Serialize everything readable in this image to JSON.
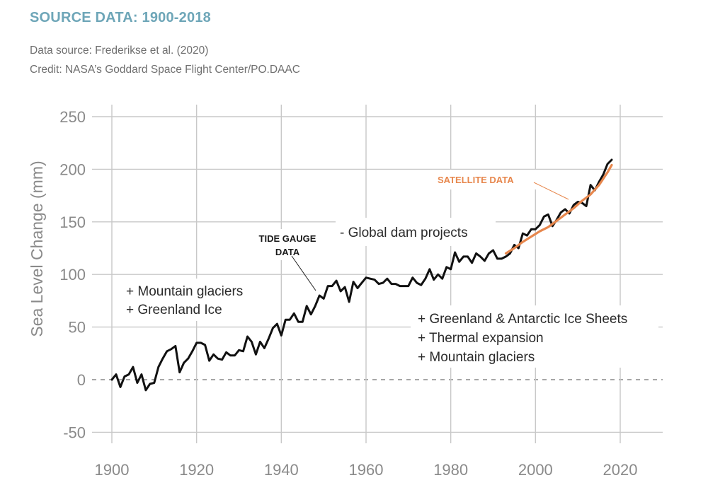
{
  "header": {
    "title": "SOURCE DATA: 1900-2018",
    "source_line": "Data source: Frederikse et al. (2020)",
    "credit_line": "Credit: NASA’s Goddard Space Flight Center/PO.DAAC"
  },
  "chart_data": {
    "type": "line",
    "title": "",
    "xlabel": "",
    "ylabel": "Sea Level Change (mm)",
    "xlim": [
      1900,
      2030
    ],
    "ylim": [
      -60,
      255
    ],
    "x_ticks": [
      1900,
      1920,
      1940,
      1960,
      1980,
      2000,
      2020
    ],
    "y_ticks": [
      250,
      200,
      150,
      100,
      50,
      0,
      -50
    ],
    "grid": true,
    "zero_line": "dashed",
    "series": [
      {
        "name": "TIDE GAUGE DATA",
        "color": "#111111",
        "x": [
          1900,
          1901,
          1902,
          1903,
          1904,
          1905,
          1906,
          1907,
          1908,
          1909,
          1910,
          1911,
          1912,
          1913,
          1914,
          1915,
          1916,
          1917,
          1918,
          1919,
          1920,
          1921,
          1922,
          1923,
          1924,
          1925,
          1926,
          1927,
          1928,
          1929,
          1930,
          1931,
          1932,
          1933,
          1934,
          1935,
          1936,
          1937,
          1938,
          1939,
          1940,
          1941,
          1942,
          1943,
          1944,
          1945,
          1946,
          1947,
          1948,
          1949,
          1950,
          1951,
          1952,
          1953,
          1954,
          1955,
          1956,
          1957,
          1958,
          1959,
          1960,
          1961,
          1962,
          1963,
          1964,
          1965,
          1966,
          1967,
          1968,
          1969,
          1970,
          1971,
          1972,
          1973,
          1974,
          1975,
          1976,
          1977,
          1978,
          1979,
          1980,
          1981,
          1982,
          1983,
          1984,
          1985,
          1986,
          1987,
          1988,
          1989,
          1990,
          1991,
          1992,
          1993,
          1994,
          1995,
          1996,
          1997,
          1998,
          1999,
          2000,
          2001,
          2002,
          2003,
          2004,
          2005,
          2006,
          2007,
          2008,
          2009,
          2010,
          2011,
          2012,
          2013,
          2014,
          2015,
          2016,
          2017,
          2018
        ],
        "values": [
          0,
          5,
          -7,
          3,
          5,
          12,
          -3,
          5,
          -10,
          -4,
          -3,
          12,
          20,
          27,
          29,
          32,
          7,
          16,
          20,
          27,
          35,
          35,
          33,
          18,
          24,
          20,
          19,
          26,
          23,
          23,
          28,
          27,
          41,
          36,
          24,
          36,
          30,
          39,
          49,
          53,
          42,
          57,
          57,
          63,
          55,
          55,
          70,
          62,
          70,
          80,
          77,
          89,
          89,
          94,
          84,
          88,
          74,
          93,
          87,
          92,
          97,
          96,
          95,
          91,
          92,
          96,
          91,
          91,
          89,
          89,
          89,
          97,
          92,
          90,
          96,
          105,
          95,
          100,
          96,
          107,
          105,
          121,
          112,
          117,
          117,
          111,
          120,
          117,
          113,
          120,
          123,
          115,
          115,
          117,
          120,
          128,
          125,
          139,
          137,
          143,
          143,
          147,
          155,
          157,
          146,
          152,
          159,
          162,
          158,
          166,
          169,
          168,
          165,
          185,
          180,
          188,
          195,
          205,
          209
        ]
      },
      {
        "name": "SATELLITE DATA",
        "color": "#e7874d",
        "x": [
          1993,
          1995,
          1997,
          1999,
          2001,
          2003,
          2005,
          2007,
          2009,
          2011,
          2013,
          2015,
          2017,
          2018
        ],
        "values": [
          120,
          125,
          131,
          136,
          141,
          145,
          151,
          157,
          163,
          170,
          176,
          185,
          197,
          204
        ]
      }
    ],
    "annotations": {
      "tide_gauge_line1": "TIDE GAUGE",
      "tide_gauge_line2": "DATA",
      "satellite": "SATELLITE DATA",
      "dam": "- Global dam projects",
      "early_1": "+ Mountain glaciers",
      "early_2": "+ Greenland Ice",
      "late_1": "+ Greenland & Antarctic Ice Sheets",
      "late_2": "+ Thermal expansion",
      "late_3": "+ Mountain glaciers"
    }
  }
}
